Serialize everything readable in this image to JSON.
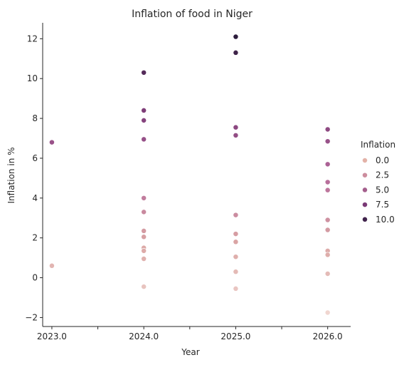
{
  "chart_data": {
    "type": "scatter",
    "title": "Inflation of food in Niger",
    "xlabel": "Year",
    "ylabel": "Inflation in %",
    "xlim": [
      2022.9,
      2026.25
    ],
    "ylim": [
      -2.45,
      12.8
    ],
    "x_ticks": [
      2023.0,
      2023.5,
      2024.0,
      2024.5,
      2025.0,
      2025.5,
      2026.0
    ],
    "x_tick_labels": [
      "2023.0",
      "",
      "2024.0",
      "",
      "2025.0",
      "",
      "2026.0"
    ],
    "y_ticks": [
      -2,
      0,
      2,
      4,
      6,
      8,
      10,
      12
    ],
    "y_tick_labels": [
      "−2",
      "0",
      "2",
      "4",
      "6",
      "8",
      "10",
      "12"
    ],
    "grid": false,
    "legend": {
      "title": "Inflation",
      "placement": "right",
      "entries": [
        {
          "label": "0.0",
          "color": "#e3b2a8"
        },
        {
          "label": "2.5",
          "color": "#cc8d9e"
        },
        {
          "label": "5.0",
          "color": "#a45e8c"
        },
        {
          "label": "7.5",
          "color": "#7a3a76"
        },
        {
          "label": "10.0",
          "color": "#40234c"
        }
      ]
    },
    "hue_range": [
      -1.75,
      12.1
    ],
    "hue_colors": [
      "#f0d6d0",
      "#dba6a4",
      "#b4689a",
      "#7a3a76",
      "#2d1c3c"
    ],
    "points": [
      {
        "x": 2023.0,
        "y": 6.8
      },
      {
        "x": 2023.0,
        "y": 0.6
      },
      {
        "x": 2024.0,
        "y": 10.3
      },
      {
        "x": 2024.0,
        "y": 8.4
      },
      {
        "x": 2024.0,
        "y": 7.9
      },
      {
        "x": 2024.0,
        "y": 6.95
      },
      {
        "x": 2024.0,
        "y": 4.0
      },
      {
        "x": 2024.0,
        "y": 3.3
      },
      {
        "x": 2024.0,
        "y": 2.35
      },
      {
        "x": 2024.0,
        "y": 2.05
      },
      {
        "x": 2024.0,
        "y": 1.5
      },
      {
        "x": 2024.0,
        "y": 1.35
      },
      {
        "x": 2024.0,
        "y": 0.95
      },
      {
        "x": 2024.0,
        "y": -0.45
      },
      {
        "x": 2025.0,
        "y": 12.1
      },
      {
        "x": 2025.0,
        "y": 11.3
      },
      {
        "x": 2025.0,
        "y": 7.55
      },
      {
        "x": 2025.0,
        "y": 7.15
      },
      {
        "x": 2025.0,
        "y": 3.15
      },
      {
        "x": 2025.0,
        "y": 2.2
      },
      {
        "x": 2025.0,
        "y": 1.8
      },
      {
        "x": 2025.0,
        "y": 1.05
      },
      {
        "x": 2025.0,
        "y": 0.3
      },
      {
        "x": 2025.0,
        "y": -0.55
      },
      {
        "x": 2026.0,
        "y": 7.45
      },
      {
        "x": 2026.0,
        "y": 6.85
      },
      {
        "x": 2026.0,
        "y": 5.7
      },
      {
        "x": 2026.0,
        "y": 4.8
      },
      {
        "x": 2026.0,
        "y": 4.4
      },
      {
        "x": 2026.0,
        "y": 2.9
      },
      {
        "x": 2026.0,
        "y": 2.4
      },
      {
        "x": 2026.0,
        "y": 1.35
      },
      {
        "x": 2026.0,
        "y": 1.15
      },
      {
        "x": 2026.0,
        "y": 0.2
      },
      {
        "x": 2026.0,
        "y": -1.75
      }
    ]
  }
}
